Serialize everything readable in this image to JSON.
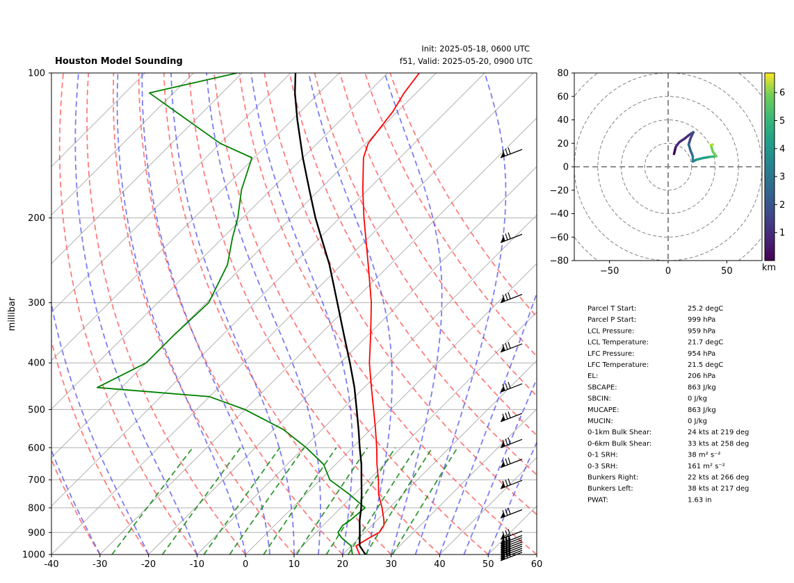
{
  "header": {
    "title": "Houston Model Sounding",
    "init": "Init: 2025-05-18, 0600 UTC",
    "valid": "f51, Valid: 2025-05-20, 0900 UTC"
  },
  "chart_data": [
    {
      "type": "line",
      "subtype": "skew-t-log-p",
      "title": "Houston Model Sounding",
      "ylabel": "millibar",
      "xlabel": "",
      "xlim": [
        -40,
        60
      ],
      "ylim": [
        1000,
        100
      ],
      "y_scale": "log",
      "x_ticks": [
        -40,
        -30,
        -20,
        -10,
        0,
        10,
        20,
        30,
        40,
        50,
        60
      ],
      "y_ticks": [
        100,
        200,
        300,
        400,
        500,
        600,
        700,
        800,
        900,
        1000
      ],
      "isobar_lines": [
        200,
        300,
        400,
        500,
        600,
        700,
        800,
        900
      ],
      "background_lines": {
        "isotherms_start": [
          -120,
          -110,
          -100,
          -90,
          -80,
          -70,
          -60,
          -50,
          -40,
          -30,
          -20,
          -10,
          0,
          10,
          20,
          30,
          40,
          50,
          60
        ],
        "dry_adiabats_start": [
          -40,
          -30,
          -20,
          -10,
          0,
          10,
          20,
          30,
          40,
          50,
          60,
          70,
          80,
          90,
          100,
          110,
          120
        ],
        "moist_adiabats_start": [
          -30,
          -20,
          -10,
          0,
          5,
          10,
          15,
          20,
          25,
          30,
          35,
          40,
          45,
          50
        ],
        "mixing_ratio_g_per_kg": [
          0.4,
          1,
          2,
          3,
          5,
          8,
          12,
          16,
          20,
          28
        ],
        "mixing_ratio_top": 600
      },
      "series": [
        {
          "name": "",
          "kind": "temperature",
          "color": "#ff0000",
          "points": [
            {
              "p": 1000,
              "t": 23.5
            },
            {
              "p": 960,
              "t": 21.0
            },
            {
              "p": 925,
              "t": 22.0
            },
            {
              "p": 900,
              "t": 23.0
            },
            {
              "p": 870,
              "t": 22.5
            },
            {
              "p": 850,
              "t": 21.5
            },
            {
              "p": 800,
              "t": 18.5
            },
            {
              "p": 750,
              "t": 15.0
            },
            {
              "p": 700,
              "t": 12.0
            },
            {
              "p": 650,
              "t": 8.5
            },
            {
              "p": 600,
              "t": 5.0
            },
            {
              "p": 550,
              "t": 1.0
            },
            {
              "p": 500,
              "t": -3.5
            },
            {
              "p": 450,
              "t": -8.5
            },
            {
              "p": 400,
              "t": -14.0
            },
            {
              "p": 350,
              "t": -19.5
            },
            {
              "p": 300,
              "t": -26.0
            },
            {
              "p": 250,
              "t": -34.5
            },
            {
              "p": 200,
              "t": -45.0
            },
            {
              "p": 175,
              "t": -51.0
            },
            {
              "p": 150,
              "t": -57.5
            },
            {
              "p": 140,
              "t": -59.5
            },
            {
              "p": 120,
              "t": -61.0
            },
            {
              "p": 110,
              "t": -62.5
            },
            {
              "p": 100,
              "t": -63.5
            }
          ]
        },
        {
          "name": "",
          "kind": "dewpoint",
          "color": "#008000",
          "points": [
            {
              "p": 1000,
              "t": 22.0
            },
            {
              "p": 960,
              "t": 20.0
            },
            {
              "p": 925,
              "t": 16.5
            },
            {
              "p": 900,
              "t": 14.5
            },
            {
              "p": 870,
              "t": 14.0
            },
            {
              "p": 850,
              "t": 14.5
            },
            {
              "p": 800,
              "t": 15.0
            },
            {
              "p": 750,
              "t": 9.0
            },
            {
              "p": 700,
              "t": 2.0
            },
            {
              "p": 650,
              "t": -2.5
            },
            {
              "p": 600,
              "t": -9.5
            },
            {
              "p": 550,
              "t": -18.0
            },
            {
              "p": 500,
              "t": -30.0
            },
            {
              "p": 470,
              "t": -40.0
            },
            {
              "p": 450,
              "t": -65.0
            },
            {
              "p": 400,
              "t": -60.0
            },
            {
              "p": 350,
              "t": -60.0
            },
            {
              "p": 300,
              "t": -59.5
            },
            {
              "p": 250,
              "t": -63.5
            },
            {
              "p": 220,
              "t": -68.0
            },
            {
              "p": 200,
              "t": -71.0
            },
            {
              "p": 175,
              "t": -76.0
            },
            {
              "p": 150,
              "t": -80.5
            },
            {
              "p": 140,
              "t": -90.0
            },
            {
              "p": 110,
              "t": -115.0
            },
            {
              "p": 100,
              "t": -101.0
            }
          ]
        },
        {
          "name": "",
          "kind": "parcel",
          "color": "#000000",
          "points": [
            {
              "p": 1000,
              "t": 24.7
            },
            {
              "p": 959,
              "t": 21.7
            },
            {
              "p": 900,
              "t": 19.0
            },
            {
              "p": 850,
              "t": 16.5
            },
            {
              "p": 800,
              "t": 14.2
            },
            {
              "p": 750,
              "t": 11.5
            },
            {
              "p": 700,
              "t": 8.5
            },
            {
              "p": 650,
              "t": 5.3
            },
            {
              "p": 600,
              "t": 1.5
            },
            {
              "p": 550,
              "t": -2.5
            },
            {
              "p": 500,
              "t": -7.0
            },
            {
              "p": 450,
              "t": -12.0
            },
            {
              "p": 400,
              "t": -18.0
            },
            {
              "p": 350,
              "t": -25.0
            },
            {
              "p": 300,
              "t": -33.0
            },
            {
              "p": 250,
              "t": -42.5
            },
            {
              "p": 200,
              "t": -55.0
            },
            {
              "p": 175,
              "t": -62.0
            },
            {
              "p": 150,
              "t": -70.0
            },
            {
              "p": 125,
              "t": -79.0
            },
            {
              "p": 110,
              "t": -85.0
            },
            {
              "p": 100,
              "t": -89.0
            }
          ]
        }
      ],
      "wind_barbs_pressure": [
        150,
        225,
        300,
        380,
        460,
        530,
        600,
        660,
        730,
        840,
        930,
        950,
        960,
        970,
        980,
        990,
        1000,
        1010,
        1020,
        1030
      ]
    },
    {
      "type": "line",
      "subtype": "hodograph",
      "xlim": [
        -80,
        80
      ],
      "ylim": [
        -80,
        80
      ],
      "x_ticks": [
        -50,
        0,
        50
      ],
      "y_ticks": [
        -80,
        -60,
        -40,
        -20,
        0,
        20,
        40,
        60,
        80
      ],
      "rings": [
        20,
        40,
        60,
        80,
        100
      ],
      "colorbar": {
        "label": "km",
        "min": 0,
        "max": 6.7,
        "ticks": [
          1,
          2,
          3,
          4,
          5,
          6
        ]
      },
      "points": [
        {
          "u": 5.0,
          "v": 11.0,
          "h": 0.0
        },
        {
          "u": 6.5,
          "v": 17.0,
          "h": 0.3
        },
        {
          "u": 9.5,
          "v": 21.0,
          "h": 0.6
        },
        {
          "u": 14.0,
          "v": 24.0,
          "h": 0.9
        },
        {
          "u": 19.0,
          "v": 28.0,
          "h": 1.2
        },
        {
          "u": 21.5,
          "v": 29.5,
          "h": 1.4
        },
        {
          "u": 19.0,
          "v": 24.0,
          "h": 1.7
        },
        {
          "u": 17.5,
          "v": 19.0,
          "h": 2.0
        },
        {
          "u": 19.0,
          "v": 14.0,
          "h": 2.3
        },
        {
          "u": 21.0,
          "v": 9.0,
          "h": 2.6
        },
        {
          "u": 21.0,
          "v": 4.5,
          "h": 2.9
        },
        {
          "u": 24.0,
          "v": 6.0,
          "h": 3.3
        },
        {
          "u": 30.0,
          "v": 7.5,
          "h": 3.8
        },
        {
          "u": 36.0,
          "v": 8.5,
          "h": 4.3
        },
        {
          "u": 41.0,
          "v": 9.0,
          "h": 4.7
        },
        {
          "u": 38.0,
          "v": 13.0,
          "h": 5.1
        },
        {
          "u": 36.5,
          "v": 18.5,
          "h": 5.5
        },
        {
          "u": 38.0,
          "v": 19.0,
          "h": 5.8
        }
      ]
    }
  ],
  "parameters": [
    {
      "label": "Parcel T Start:",
      "value": "25.2 degC"
    },
    {
      "label": "Parcel P Start:",
      "value": "999 hPa"
    },
    {
      "label": "LCL Pressure:",
      "value": "959 hPa"
    },
    {
      "label": "LCL Temperature:",
      "value": "21.7 degC"
    },
    {
      "label": "LFC Pressure:",
      "value": "954 hPa"
    },
    {
      "label": "LFC Temperature:",
      "value": "21.5 degC"
    },
    {
      "label": "EL:",
      "value": "206 hPa"
    },
    {
      "label": "SBCAPE:",
      "value": "863 J/kg"
    },
    {
      "label": "SBCIN:",
      "value": "0 J/kg"
    },
    {
      "label": "MUCAPE:",
      "value": "863 J/kg"
    },
    {
      "label": "MUCIN:",
      "value": "0 J/kg"
    },
    {
      "label": "0-1km Bulk Shear:",
      "value": "24 kts at 219 deg"
    },
    {
      "label": "0-6km Bulk Shear:",
      "value": "33 kts at 258 deg"
    },
    {
      "label": "0-1 SRH:",
      "value": "38 m² s⁻²"
    },
    {
      "label": "0-3 SRH:",
      "value": "161 m² s⁻²"
    },
    {
      "label": "Bunkers Right:",
      "value": "22 kts at 266 deg"
    },
    {
      "label": "Bunkers Left:",
      "value": "38 kts at 217 deg"
    },
    {
      "label": "PWAT:",
      "value": "1.63 in"
    }
  ]
}
